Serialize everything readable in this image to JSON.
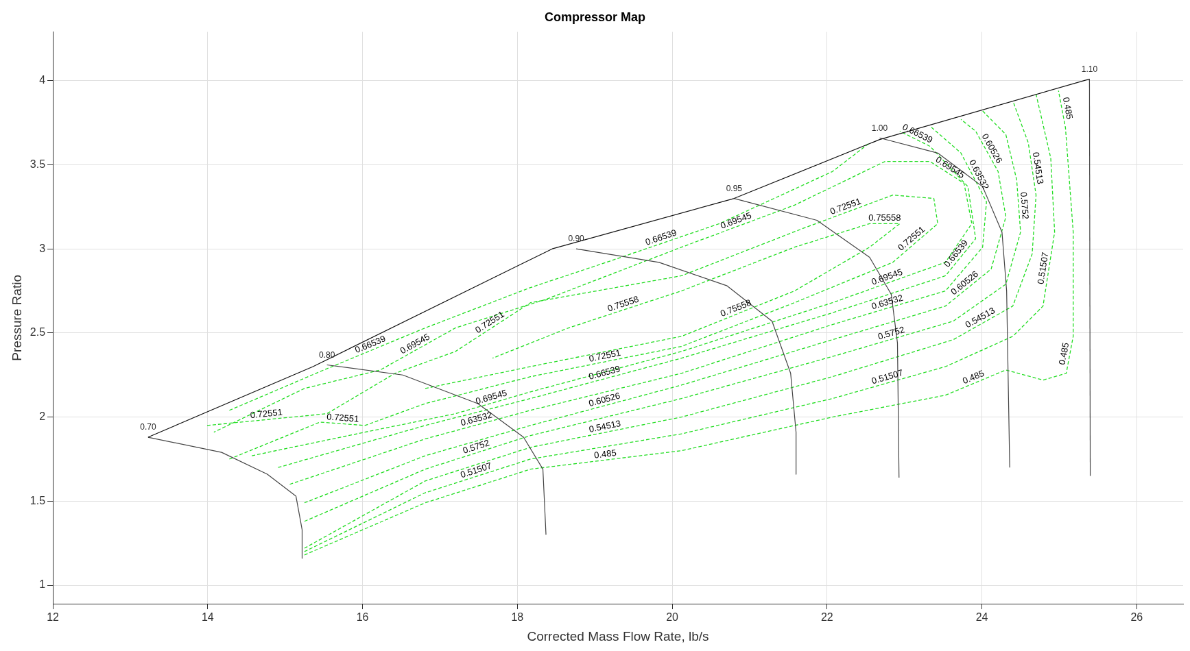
{
  "chart_data": {
    "type": "line",
    "title": "Compressor Map",
    "xlabel": "Corrected Mass Flow Rate, lb/s",
    "ylabel": "Pressure Ratio",
    "xlim": [
      12,
      26.6
    ],
    "ylim": [
      0.89,
      4.29
    ],
    "xticks": [
      12,
      14,
      16,
      18,
      20,
      22,
      24,
      26
    ],
    "yticks": [
      1,
      1.5,
      2,
      2.5,
      3,
      3.5,
      4
    ],
    "grid": true,
    "legend": false,
    "marker": "none",
    "series": [
      {
        "color": "#111111",
        "line_style": "solid",
        "x": [
          13.23,
          15.36,
          18.45,
          20.8,
          22.68,
          25.39
        ],
        "values": [
          1.88,
          2.3,
          3.0,
          3.3,
          3.65,
          4.01
        ]
      },
      {
        "name": "0.70",
        "color": "#444444",
        "line_style": "solid",
        "x": [
          13.23,
          14.18,
          14.77,
          15.14,
          15.22,
          15.22
        ],
        "values": [
          1.88,
          1.79,
          1.66,
          1.53,
          1.33,
          1.16
        ]
      },
      {
        "name": "0.80",
        "color": "#444444",
        "line_style": "solid",
        "x": [
          15.54,
          16.52,
          17.49,
          18.08,
          18.33,
          18.37
        ],
        "values": [
          2.31,
          2.25,
          2.08,
          1.88,
          1.69,
          1.3
        ]
      },
      {
        "name": "0.90",
        "color": "#444444",
        "line_style": "solid",
        "x": [
          18.76,
          19.83,
          20.71,
          21.29,
          21.53,
          21.6,
          21.6
        ],
        "values": [
          3.0,
          2.92,
          2.78,
          2.57,
          2.26,
          1.91,
          1.66
        ]
      },
      {
        "name": "0.95",
        "color": "#444444",
        "line_style": "solid",
        "x": [
          20.8,
          21.87,
          22.55,
          22.83,
          22.91,
          22.93
        ],
        "values": [
          3.3,
          3.17,
          2.95,
          2.73,
          2.44,
          1.64
        ]
      },
      {
        "name": "1.00",
        "color": "#444444",
        "line_style": "solid",
        "x": [
          22.68,
          23.43,
          24.01,
          24.26,
          24.32,
          24.36
        ],
        "values": [
          3.66,
          3.57,
          3.37,
          3.1,
          2.75,
          1.7
        ]
      },
      {
        "name": "1.10",
        "color": "#444444",
        "line_style": "solid",
        "x": [
          25.39,
          25.4
        ],
        "values": [
          4.01,
          1.65
        ]
      },
      {
        "name": "0.485",
        "color": "#22dd22",
        "line_style": "dashed",
        "x": [
          15.25,
          16.81,
          18.17,
          20.12,
          22.07,
          23.53,
          24.31,
          24.79,
          25.09,
          25.18,
          25.18,
          25.08,
          24.99
        ],
        "values": [
          1.18,
          1.49,
          1.69,
          1.8,
          2.0,
          2.13,
          2.28,
          2.22,
          2.26,
          2.48,
          3.1,
          3.72,
          3.94
        ]
      },
      {
        "name": "0.51507",
        "color": "#22dd22",
        "line_style": "dashed",
        "x": [
          15.25,
          16.81,
          18.17,
          20.12,
          22.07,
          23.53,
          24.4,
          24.79,
          24.94,
          24.89,
          24.7
        ],
        "values": [
          1.2,
          1.55,
          1.75,
          1.9,
          2.11,
          2.3,
          2.48,
          2.66,
          3.1,
          3.54,
          3.92
        ]
      },
      {
        "name": "0.54513",
        "color": "#22dd22",
        "line_style": "dashed",
        "x": [
          15.25,
          16.81,
          18.17,
          20.12,
          22.07,
          23.63,
          24.4,
          24.65,
          24.7,
          24.6,
          24.4
        ],
        "values": [
          1.22,
          1.62,
          1.82,
          2.0,
          2.24,
          2.46,
          2.66,
          2.97,
          3.32,
          3.63,
          3.88
        ]
      },
      {
        "name": "0.5752",
        "color": "#22dd22",
        "line_style": "dashed",
        "x": [
          15.25,
          16.81,
          18.17,
          20.12,
          22.07,
          23.63,
          24.31,
          24.5,
          24.45,
          24.31,
          24.01
        ],
        "values": [
          1.38,
          1.69,
          1.89,
          2.11,
          2.36,
          2.57,
          2.79,
          3.1,
          3.41,
          3.68,
          3.82
        ]
      },
      {
        "name": "0.60526",
        "color": "#22dd22",
        "line_style": "dashed",
        "x": [
          15.25,
          16.81,
          18.17,
          20.12,
          22.07,
          23.53,
          24.12,
          24.31,
          24.21,
          23.92,
          23.73
        ],
        "values": [
          1.49,
          1.77,
          1.95,
          2.19,
          2.46,
          2.66,
          2.88,
          3.19,
          3.46,
          3.7,
          3.77
        ]
      },
      {
        "name": "0.63532",
        "color": "#22dd22",
        "line_style": "dashed",
        "x": [
          15.06,
          16.81,
          18.17,
          20.12,
          22.07,
          23.53,
          24.01,
          24.06,
          23.73,
          23.33
        ],
        "values": [
          1.6,
          1.87,
          2.04,
          2.26,
          2.55,
          2.75,
          3.01,
          3.28,
          3.57,
          3.73
        ]
      },
      {
        "name": "0.66539",
        "color": "#22dd22",
        "line_style": "dashed",
        "x": [
          14.91,
          16.81,
          18.17,
          20.12,
          22.07,
          23.53,
          23.92,
          23.82,
          23.33,
          22.94
        ],
        "values": [
          1.7,
          1.95,
          2.11,
          2.35,
          2.62,
          2.84,
          3.06,
          3.37,
          3.61,
          3.7
        ]
      },
      {
        "name": "0.66539",
        "color": "#22dd22",
        "line_style": "dashed",
        "x": [
          14.28,
          15.45,
          16.81,
          18.17,
          19.15,
          20.61,
          22.07,
          22.55
        ],
        "values": [
          2.04,
          2.27,
          2.53,
          2.77,
          2.92,
          3.15,
          3.46,
          3.63
        ]
      },
      {
        "name": "0.69545",
        "color": "#22dd22",
        "line_style": "dashed",
        "x": [
          14.57,
          16.03,
          17.2,
          18.17,
          20.12,
          22.07,
          23.53,
          23.87,
          23.77,
          23.33,
          22.75,
          21.58,
          20.12,
          18.37,
          17.2,
          16.23,
          15.25,
          14.08
        ],
        "values": [
          1.77,
          1.91,
          2.02,
          2.15,
          2.39,
          2.68,
          2.92,
          3.15,
          3.39,
          3.52,
          3.52,
          3.26,
          3.01,
          2.7,
          2.53,
          2.28,
          2.17,
          1.91
        ]
      },
      {
        "name": "0.72551",
        "color": "#22dd22",
        "line_style": "dashed",
        "x": [
          14.28,
          15.45,
          16.03,
          16.81,
          18.17,
          20.12,
          21.58,
          22.85,
          23.43,
          23.38,
          22.85,
          21.68,
          20.12,
          18.17,
          17.2,
          16.42,
          15.54,
          13.99
        ],
        "values": [
          1.75,
          1.97,
          1.95,
          2.08,
          2.24,
          2.42,
          2.68,
          2.92,
          3.15,
          3.3,
          3.32,
          3.12,
          2.84,
          2.68,
          2.39,
          2.26,
          2.02,
          1.95
        ]
      },
      {
        "name": "0.75558",
        "color": "#22dd22",
        "line_style": "dashed",
        "x": [
          16.81,
          18.17,
          20.12,
          21.58,
          22.55,
          22.94,
          22.55,
          21.58,
          20.12,
          18.66,
          17.68
        ],
        "values": [
          2.17,
          2.3,
          2.48,
          2.75,
          3.01,
          3.15,
          3.15,
          3.01,
          2.75,
          2.53,
          2.35
        ]
      }
    ]
  }
}
